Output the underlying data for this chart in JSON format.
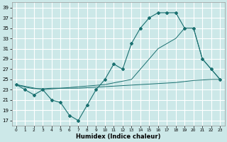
{
  "xlabel": "Humidex (Indice chaleur)",
  "bg_color": "#cce8e8",
  "grid_color": "#ffffff",
  "line_color": "#1a7070",
  "xlim": [
    -0.5,
    23.5
  ],
  "ylim": [
    16,
    40
  ],
  "yticks": [
    17,
    19,
    21,
    23,
    25,
    27,
    29,
    31,
    33,
    35,
    37,
    39
  ],
  "xticks": [
    0,
    1,
    2,
    3,
    4,
    5,
    6,
    7,
    8,
    9,
    10,
    11,
    12,
    13,
    14,
    15,
    16,
    17,
    18,
    19,
    20,
    21,
    22,
    23
  ],
  "line1_x": [
    0,
    1,
    2,
    3,
    4,
    5,
    6,
    7,
    8,
    9,
    10,
    11,
    12,
    13,
    14,
    15,
    16,
    17,
    18,
    19,
    20,
    21,
    22,
    23
  ],
  "line1_y": [
    24,
    23,
    22,
    23,
    21,
    20.5,
    18,
    17,
    20,
    23,
    25,
    28,
    27,
    32,
    35,
    37,
    38,
    38,
    38,
    35,
    35,
    29,
    27,
    25
  ],
  "line2_x": [
    0,
    3,
    10,
    13,
    14,
    15,
    16,
    17,
    18,
    19,
    20,
    21,
    22,
    23
  ],
  "line2_y": [
    24,
    23,
    24,
    25,
    27,
    29,
    31,
    32,
    33,
    35,
    35,
    29,
    27,
    25
  ],
  "line3_x": [
    0,
    1,
    2,
    3,
    4,
    5,
    6,
    7,
    8,
    9,
    10,
    11,
    12,
    13,
    14,
    15,
    16,
    17,
    18,
    19,
    20,
    21,
    22,
    23
  ],
  "line3_y": [
    24,
    23.5,
    23.2,
    23.2,
    23.3,
    23.3,
    23.3,
    23.3,
    23.4,
    23.5,
    23.6,
    23.7,
    23.8,
    23.9,
    24.0,
    24.1,
    24.2,
    24.3,
    24.4,
    24.6,
    24.8,
    24.9,
    25.0,
    25.0
  ]
}
